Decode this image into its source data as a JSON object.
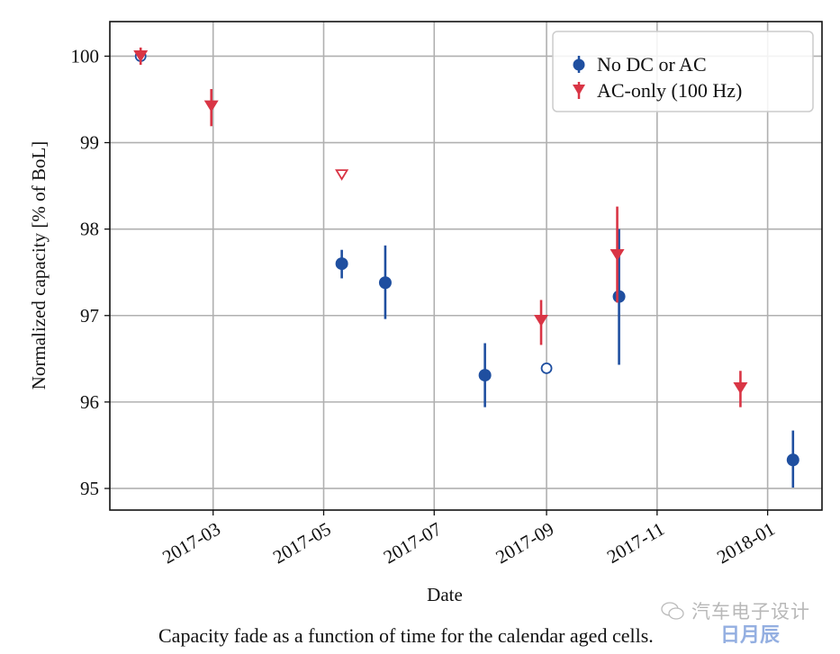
{
  "chart_data": {
    "type": "scatter",
    "title": "",
    "xlabel": "Date",
    "ylabel": "Normalized capacity [% of BoL]",
    "xlim": [
      "2017-01-03",
      "2018-01-31"
    ],
    "ylim": [
      94.75,
      100.4
    ],
    "grid": true,
    "legend_position": "top-right",
    "x_ticks": [
      {
        "date": "2017-03-01",
        "label": "2017-03"
      },
      {
        "date": "2017-05-01",
        "label": "2017-05"
      },
      {
        "date": "2017-07-01",
        "label": "2017-07"
      },
      {
        "date": "2017-09-01",
        "label": "2017-09"
      },
      {
        "date": "2017-11-01",
        "label": "2017-11"
      },
      {
        "date": "2018-01-01",
        "label": "2018-01"
      }
    ],
    "y_ticks": [
      95,
      96,
      97,
      98,
      99,
      100
    ],
    "series": [
      {
        "name": "No DC or AC",
        "color": "#1f4fa0",
        "marker": "circle",
        "points": [
          {
            "date": "2017-01-20",
            "y": 100.0,
            "yerr_low": 100.0,
            "yerr_high": 100.0,
            "filled": false
          },
          {
            "date": "2017-05-11",
            "y": 97.6,
            "yerr_low": 97.43,
            "yerr_high": 97.76,
            "filled": true
          },
          {
            "date": "2017-06-04",
            "y": 97.38,
            "yerr_low": 96.96,
            "yerr_high": 97.81,
            "filled": true
          },
          {
            "date": "2017-07-29",
            "y": 96.31,
            "yerr_low": 95.94,
            "yerr_high": 96.68,
            "filled": true
          },
          {
            "date": "2017-09-01",
            "y": 96.39,
            "yerr_low": 96.39,
            "yerr_high": 96.39,
            "filled": false
          },
          {
            "date": "2017-10-11",
            "y": 97.22,
            "yerr_low": 96.43,
            "yerr_high": 98.0,
            "filled": true
          },
          {
            "date": "2018-01-15",
            "y": 95.33,
            "yerr_low": 95.01,
            "yerr_high": 95.67,
            "filled": true
          }
        ]
      },
      {
        "name": "AC-only (100 Hz)",
        "color": "#d93545",
        "marker": "triangle-down",
        "points": [
          {
            "date": "2017-01-20",
            "y": 100.0,
            "yerr_low": 99.9,
            "yerr_high": 100.1,
            "filled": true
          },
          {
            "date": "2017-02-28",
            "y": 99.42,
            "yerr_low": 99.19,
            "yerr_high": 99.62,
            "filled": true
          },
          {
            "date": "2017-05-11",
            "y": 98.63,
            "yerr_low": 98.63,
            "yerr_high": 98.63,
            "filled": false
          },
          {
            "date": "2017-08-29",
            "y": 96.94,
            "yerr_low": 96.66,
            "yerr_high": 97.18,
            "filled": true
          },
          {
            "date": "2017-10-10",
            "y": 97.7,
            "yerr_low": 97.15,
            "yerr_high": 98.26,
            "filled": true
          },
          {
            "date": "2017-12-17",
            "y": 96.16,
            "yerr_low": 95.94,
            "yerr_high": 96.36,
            "filled": true
          }
        ]
      }
    ]
  },
  "caption": "Capacity fade as a function of time for the calendar aged cells.",
  "watermark": {
    "text": "汽车电子设计",
    "logo_text": "日月辰"
  }
}
